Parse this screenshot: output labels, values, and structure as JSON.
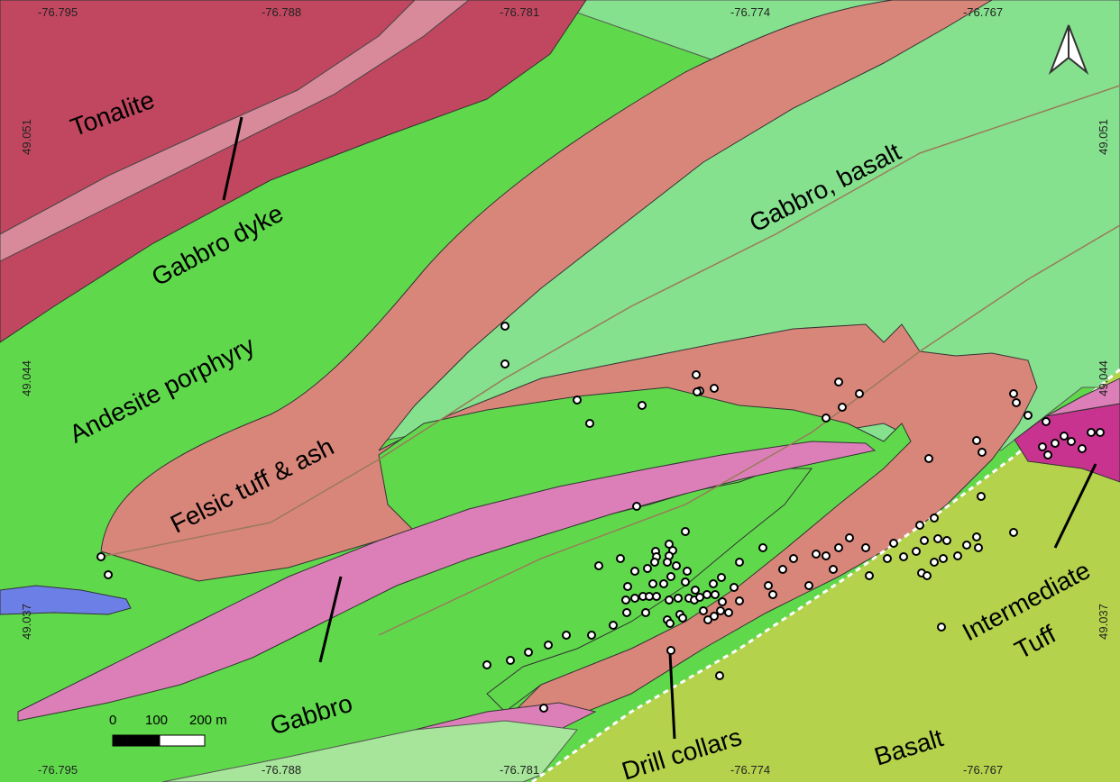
{
  "map": {
    "longitude_ticks_top": [
      "-76.795",
      "-76.788",
      "-76.781",
      "-76.774",
      "-76.767"
    ],
    "longitude_ticks_bottom": [
      "-76.795",
      "-76.788",
      "-76.781",
      "-76.774",
      "-76.767"
    ],
    "latitude_ticks_left": [
      "49.051",
      "49.044",
      "49.037"
    ],
    "latitude_ticks_right": [
      "49.051",
      "49.044",
      "49.037"
    ],
    "unit_labels": {
      "tonalite": "Tonalite",
      "gabbro_dyke": "Gabbro dyke",
      "gabbro_basalt": "Gabbro, basalt",
      "andesite_porphyry": "Andesite porphyry",
      "felsic_tuff": "Felsic tuff & ash",
      "gabbro": "Gabbro",
      "drill_collars": "Drill collars",
      "basalt": "Basalt",
      "intermediate_tuff_1": "Intermediate",
      "intermediate_tuff_2": "Tuff"
    },
    "scale_bar": {
      "zero": "0",
      "mid": "100",
      "end": "200 m"
    },
    "north_arrow": "north-arrow-icon",
    "colors": {
      "tonalite": "#c0475f",
      "gabbro_dyke": "#d98a9a",
      "andesite": "#5fd94b",
      "gabbro_basalt": "#86e18e",
      "felsic_tuff": "#d9867a",
      "gabbro_pink": "#dc7fb8",
      "basalt": "#b5d24c",
      "intermediate_tuff": "#c8338f",
      "light_strip": "#a6e59a",
      "lake": "#6b7fe6"
    }
  }
}
